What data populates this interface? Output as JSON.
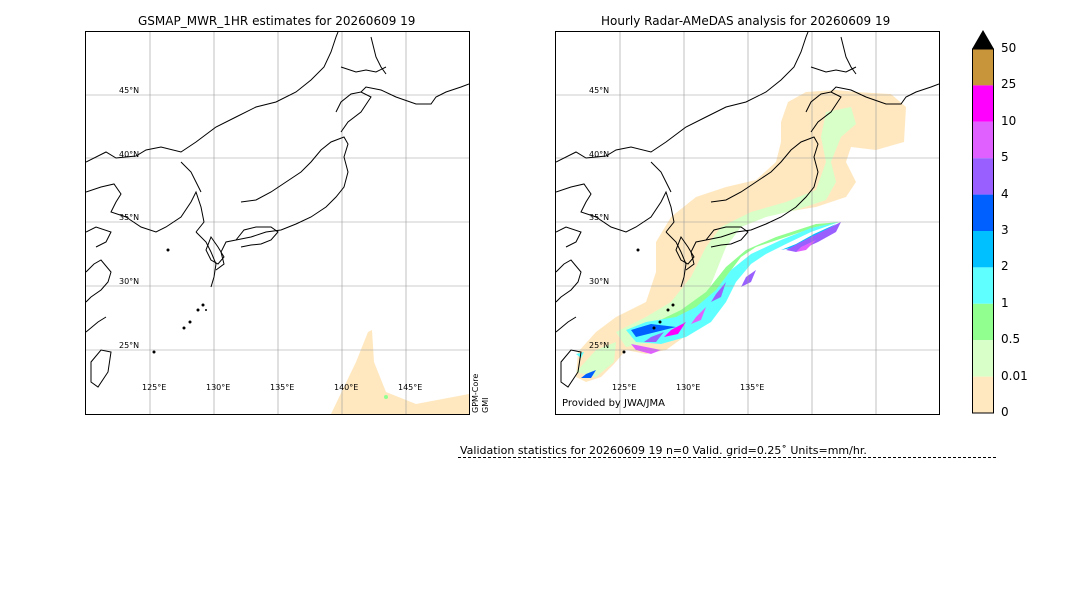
{
  "left_panel": {
    "title": "GSMAP_MWR_1HR estimates for 20260609 19",
    "lat_labels": [
      "45°N",
      "40°N",
      "35°N",
      "30°N",
      "25°N"
    ],
    "lon_labels": [
      "125°E",
      "130°E",
      "135°E",
      "140°E",
      "145°E"
    ],
    "satellite_label_1": "GPM-Core",
    "satellite_label_2": "GMI"
  },
  "right_panel": {
    "title": "Hourly Radar-AMeDAS analysis for 20260609 19",
    "lat_labels": [
      "45°N",
      "40°N",
      "35°N",
      "30°N",
      "25°N"
    ],
    "lon_labels": [
      "125°E",
      "130°E",
      "135°E"
    ],
    "credit": "Provided by JWA/JMA"
  },
  "colorbar": {
    "labels": [
      "50",
      "25",
      "10",
      "5",
      "4",
      "3",
      "2",
      "1",
      "0.5",
      "0.01",
      "0"
    ],
    "colors": [
      "#c8953a",
      "#ff00ff",
      "#e060ff",
      "#9a60ff",
      "#0060ff",
      "#00c0ff",
      "#60ffff",
      "#90ff90",
      "#d8ffc8",
      "#ffe8c0"
    ],
    "extend_color": "#000000"
  },
  "validation": {
    "text": "Validation statistics for 20260609 19  n=0 Valid. grid=0.25˚ Units=mm/hr."
  }
}
